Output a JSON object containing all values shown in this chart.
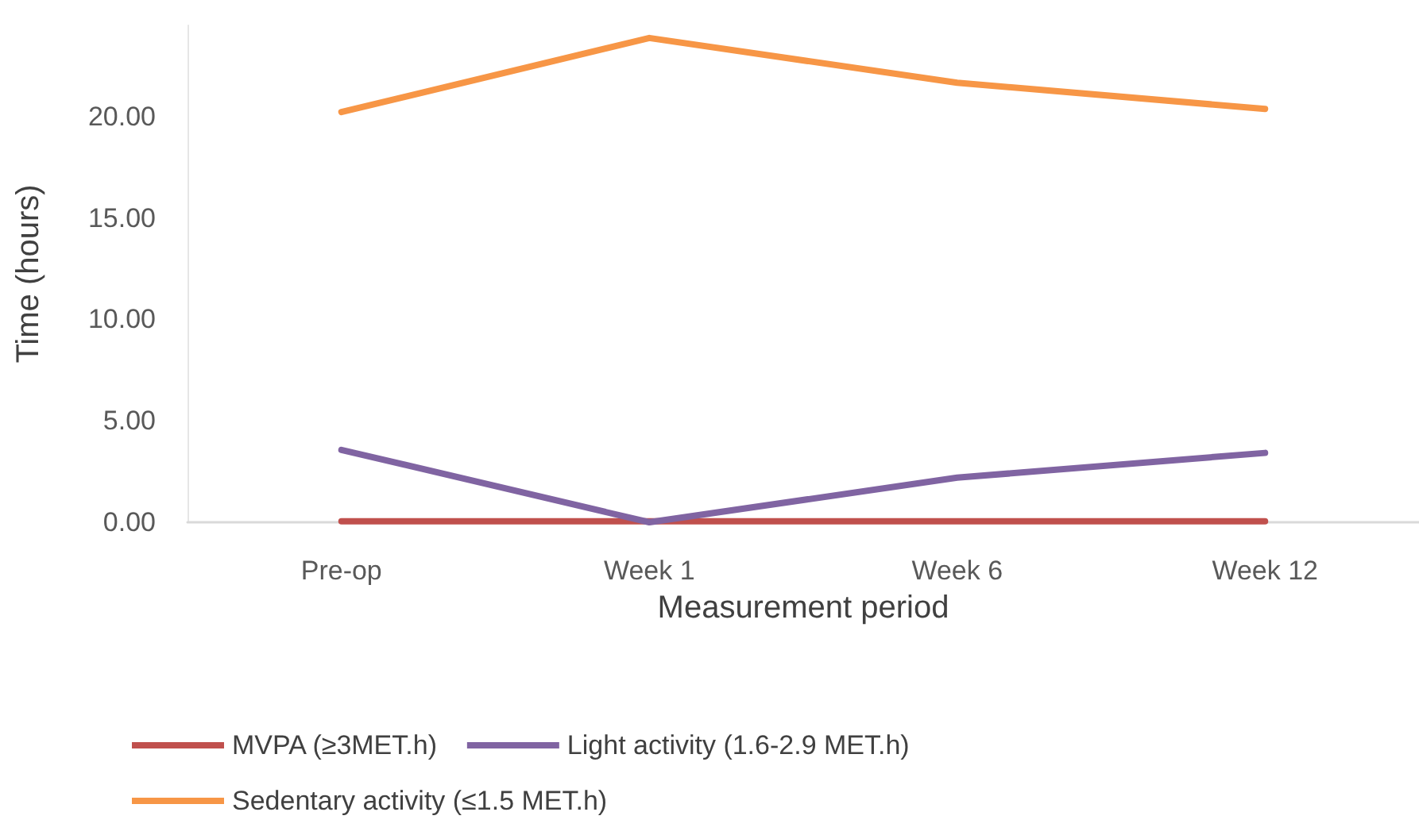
{
  "chart_data": {
    "type": "line",
    "xlabel": "Measurement period",
    "ylabel": "Time (hours)",
    "categories": [
      "Pre-op",
      "Week 1",
      "Week 6",
      "Week 12"
    ],
    "series": [
      {
        "name": "MVPA (≥3MET.h)",
        "color": "#c0504d",
        "values": [
          0.05,
          0.05,
          0.05,
          0.05
        ]
      },
      {
        "name": "Light activity (1.6-2.9 MET.h)",
        "color": "#8064a2",
        "values": [
          3.57,
          0,
          2.2,
          3.42
        ]
      },
      {
        "name": "Sedentary activity (≤1.5 MET.h)",
        "color": "#f79646",
        "values": [
          20.23,
          23.88,
          21.67,
          20.38
        ]
      }
    ],
    "ylim": [
      0,
      24.5
    ],
    "yticks": [
      {
        "value": 0,
        "label": "0.00"
      },
      {
        "value": 5,
        "label": "5.00"
      },
      {
        "value": 10,
        "label": "10.00"
      },
      {
        "value": 15,
        "label": "15.00"
      },
      {
        "value": 20,
        "label": "20.00"
      }
    ],
    "grid": false,
    "legend": "bottom",
    "marker": "none",
    "line_style": "solid"
  }
}
